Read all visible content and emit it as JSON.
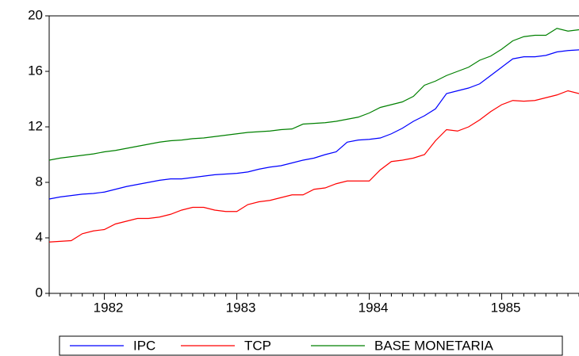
{
  "chart_data": {
    "type": "line",
    "categories": [
      null,
      null,
      null,
      null,
      null,
      "1982",
      null,
      null,
      null,
      null,
      null,
      null,
      null,
      null,
      null,
      null,
      null,
      "1983",
      null,
      null,
      null,
      null,
      null,
      null,
      null,
      null,
      null,
      null,
      null,
      "1984",
      null,
      null,
      null,
      null,
      null,
      null,
      null,
      null,
      null,
      null,
      null,
      "1985",
      null,
      null,
      null,
      null,
      null,
      null,
      null
    ],
    "series": [
      {
        "name": "IPC",
        "color": "#0000ff",
        "values": [
          6.8,
          6.95,
          7.05,
          7.15,
          7.2,
          7.3,
          7.5,
          7.7,
          7.85,
          8.0,
          8.15,
          8.25,
          8.25,
          8.35,
          8.45,
          8.55,
          8.6,
          8.65,
          8.75,
          8.95,
          9.1,
          9.2,
          9.4,
          9.6,
          9.75,
          10.0,
          10.2,
          10.9,
          11.05,
          11.1,
          11.2,
          11.5,
          11.9,
          12.4,
          12.8,
          13.3,
          14.4,
          14.6,
          14.8,
          15.1,
          15.7,
          16.3,
          16.9,
          17.05,
          17.05,
          17.15,
          17.4,
          17.5,
          17.55
        ]
      },
      {
        "name": "TCP",
        "color": "#ff0000",
        "values": [
          3.7,
          3.75,
          3.8,
          4.3,
          4.5,
          4.6,
          5.0,
          5.2,
          5.4,
          5.4,
          5.5,
          5.7,
          6.0,
          6.2,
          6.2,
          6.0,
          5.9,
          5.9,
          6.4,
          6.6,
          6.7,
          6.9,
          7.1,
          7.1,
          7.5,
          7.6,
          7.9,
          8.1,
          8.1,
          8.1,
          8.9,
          9.5,
          9.6,
          9.75,
          10.0,
          11.0,
          11.8,
          11.7,
          12.0,
          12.5,
          13.1,
          13.6,
          13.9,
          13.85,
          13.9,
          14.1,
          14.3,
          14.6,
          14.4
        ]
      },
      {
        "name": "BASE MONETARIA",
        "color": "#008000",
        "values": [
          9.6,
          9.75,
          9.85,
          9.95,
          10.05,
          10.2,
          10.3,
          10.45,
          10.6,
          10.75,
          10.9,
          11.0,
          11.05,
          11.15,
          11.2,
          11.3,
          11.4,
          11.5,
          11.6,
          11.65,
          11.7,
          11.8,
          11.85,
          12.2,
          12.25,
          12.3,
          12.4,
          12.55,
          12.7,
          13.0,
          13.4,
          13.6,
          13.8,
          14.2,
          15.0,
          15.3,
          15.7,
          16.0,
          16.3,
          16.8,
          17.1,
          17.6,
          18.2,
          18.5,
          18.6,
          18.6,
          19.1,
          18.9,
          19.0
        ]
      }
    ],
    "ylim": [
      0,
      20
    ],
    "yticks": [
      0,
      4,
      8,
      12,
      16,
      20
    ],
    "grid": false,
    "legend": "bottom"
  }
}
